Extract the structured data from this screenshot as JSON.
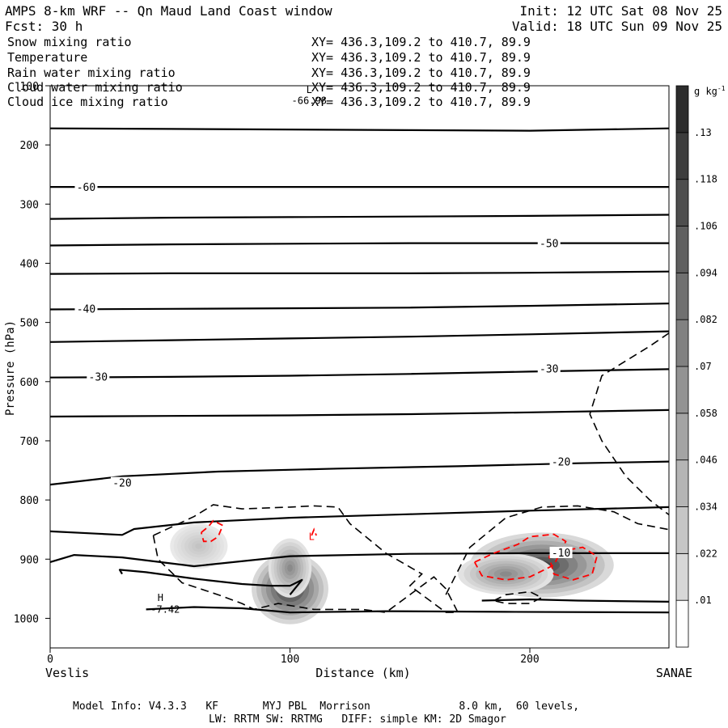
{
  "header": {
    "title": "AMPS 8-km WRF -- Qn Maud Land Coast window",
    "forecast": "Fcst:   30 h",
    "init": "Init: 12 UTC Sat 08 Nov 25",
    "valid": "Valid: 18 UTC Sun 09 Nov 25"
  },
  "fields": [
    {
      "name": "Snow mixing ratio",
      "xy": "XY= 436.3,109.2 to 410.7, 89.9",
      "color": "#000000"
    },
    {
      "name": "Temperature",
      "xy": "XY= 436.3,109.2 to 410.7, 89.9",
      "color": "#000000"
    },
    {
      "name": "Rain water mixing ratio",
      "xy": "XY= 436.3,109.2 to 410.7, 89.9",
      "color": "#ff0000"
    },
    {
      "name": "Cloud water mixing ratio",
      "xy": "XY= 436.3,109.2 to 410.7, 89.9",
      "color": "#0000ff"
    },
    {
      "name": "Cloud ice mixing ratio",
      "xy": "XY= 436.3,109.2 to 410.7, 89.9",
      "color": "#000000"
    }
  ],
  "chart_data": {
    "type": "cross-section",
    "xlabel": "Distance (km)",
    "ylabel": "Pressure (hPa)",
    "xlim": [
      0,
      258
    ],
    "ylim": [
      1050,
      100
    ],
    "x_ticks": [
      0,
      100,
      200
    ],
    "y_ticks": [
      100,
      200,
      300,
      400,
      500,
      600,
      700,
      800,
      900,
      1000
    ],
    "x_end_labels": {
      "left": "Veslis",
      "right": "SANAE"
    },
    "colorbar": {
      "unit": "g kg",
      "unit_sup": "-1",
      "levels": [
        ".01",
        ".022",
        ".034",
        ".046",
        ".058",
        ".07",
        ".082",
        ".094",
        ".106",
        ".118",
        ".13"
      ]
    },
    "temperature_isotherm_labels": [
      {
        "label": "-60",
        "x": 15,
        "p": 272
      },
      {
        "label": "-50",
        "x": 208,
        "p": 367
      },
      {
        "label": "-40",
        "x": 15,
        "p": 478
      },
      {
        "label": "-30",
        "x": 20,
        "p": 593
      },
      {
        "label": "-30",
        "x": 208,
        "p": 579
      },
      {
        "label": "-20",
        "x": 30,
        "p": 772
      },
      {
        "label": "-20",
        "x": 213,
        "p": 736
      },
      {
        "label": "-10",
        "x": 213,
        "p": 890
      }
    ],
    "temperature_isotherms": [
      {
        "x": [
          0,
          50,
          100,
          150,
          200,
          258
        ],
        "p": [
          172,
          173,
          174,
          175,
          176,
          172
        ]
      },
      {
        "x": [
          0,
          50,
          100,
          150,
          200,
          258
        ],
        "p": [
          271,
          271,
          271,
          271,
          271,
          271
        ]
      },
      {
        "x": [
          0,
          50,
          100,
          150,
          200,
          258
        ],
        "p": [
          325,
          323,
          322,
          321,
          320,
          318
        ]
      },
      {
        "x": [
          0,
          50,
          100,
          150,
          200,
          258
        ],
        "p": [
          370,
          368,
          367,
          366,
          366,
          366
        ]
      },
      {
        "x": [
          0,
          50,
          100,
          150,
          200,
          258
        ],
        "p": [
          418,
          417,
          417,
          417,
          416,
          414
        ]
      },
      {
        "x": [
          0,
          50,
          100,
          150,
          200,
          258
        ],
        "p": [
          478,
          477,
          476,
          475,
          472,
          468
        ]
      },
      {
        "x": [
          0,
          50,
          100,
          150,
          200,
          258
        ],
        "p": [
          533,
          530,
          527,
          524,
          520,
          515
        ]
      },
      {
        "x": [
          0,
          50,
          100,
          150,
          200,
          258
        ],
        "p": [
          593,
          592,
          590,
          587,
          583,
          579
        ]
      },
      {
        "x": [
          0,
          50,
          100,
          150,
          200,
          258
        ],
        "p": [
          659,
          658,
          657,
          655,
          652,
          648
        ]
      },
      {
        "x": [
          0,
          30,
          70,
          120,
          170,
          220,
          258
        ],
        "p": [
          774,
          760,
          752,
          747,
          743,
          738,
          735
        ]
      },
      {
        "x": [
          0,
          20,
          30,
          35,
          60,
          100,
          150,
          200,
          258
        ],
        "p": [
          853,
          857,
          859,
          849,
          838,
          830,
          824,
          818,
          812
        ]
      },
      {
        "x": [
          0,
          10,
          30,
          60,
          100,
          150,
          200,
          258
        ],
        "p": [
          905,
          893,
          897,
          912,
          895,
          891,
          890,
          890
        ]
      },
      {
        "x": [
          30,
          29,
          40,
          60,
          80,
          92,
          100,
          105,
          100
        ],
        "p": [
          925,
          918,
          922,
          933,
          942,
          945,
          945,
          935,
          960
        ]
      },
      {
        "x": [
          40,
          60,
          80,
          100,
          140,
          190,
          258
        ],
        "p": [
          985,
          981,
          983,
          990,
          988,
          989,
          990
        ]
      },
      {
        "x": [
          180,
          200,
          220,
          258
        ],
        "p": [
          970,
          968,
          970,
          972
        ]
      }
    ],
    "snow_dashed_contours": [
      {
        "x": [
          43,
          60,
          68,
          80,
          100,
          110,
          120,
          125,
          140,
          155,
          150,
          165,
          170,
          165,
          160,
          150,
          140,
          130,
          110,
          95,
          85,
          80,
          70,
          55,
          45,
          43
        ],
        "p": [
          860,
          828,
          808,
          815,
          812,
          810,
          812,
          840,
          890,
          925,
          945,
          990,
          990,
          950,
          930,
          960,
          990,
          985,
          985,
          975,
          985,
          975,
          960,
          940,
          900,
          860
        ]
      },
      {
        "x": [
          165,
          175,
          190,
          205,
          220,
          235,
          245,
          258
        ],
        "p": [
          960,
          880,
          830,
          812,
          810,
          820,
          840,
          850
        ]
      },
      {
        "x": [
          258,
          250,
          230,
          225,
          230,
          240,
          250,
          258
        ],
        "p": [
          518,
          540,
          590,
          655,
          700,
          760,
          800,
          825
        ]
      },
      {
        "x": [
          185,
          190,
          200,
          205,
          200,
          190,
          185
        ],
        "p": [
          970,
          960,
          955,
          965,
          975,
          975,
          970
        ]
      }
    ],
    "rain_contours": [
      {
        "x": [
          63,
          66,
          68,
          72,
          70,
          67,
          64,
          63
        ],
        "p": [
          855,
          845,
          835,
          843,
          862,
          870,
          870,
          855
        ]
      },
      {
        "x": [
          109,
          110,
          111
        ],
        "p": [
          860,
          850,
          860
        ]
      },
      {
        "x": [
          177,
          185,
          195,
          200,
          205,
          210,
          215,
          210,
          200,
          190,
          180,
          177
        ],
        "p": [
          905,
          890,
          875,
          862,
          860,
          858,
          870,
          910,
          930,
          935,
          928,
          905
        ]
      },
      {
        "x": [
          208,
          215,
          222,
          228,
          226,
          218,
          210,
          208
        ],
        "p": [
          895,
          885,
          880,
          895,
          925,
          935,
          925,
          895
        ]
      }
    ],
    "shading_blobs": [
      {
        "x": 100,
        "p": 950,
        "rx": 16,
        "rp": 60,
        "value": 0.13
      },
      {
        "x": 100,
        "p": 915,
        "rx": 9,
        "rp": 50,
        "value": 0.07
      },
      {
        "x": 62,
        "p": 878,
        "rx": 12,
        "rp": 38,
        "value": 0.03
      },
      {
        "x": 205,
        "p": 910,
        "rx": 30,
        "rp": 55,
        "value": 0.12
      },
      {
        "x": 190,
        "p": 925,
        "rx": 20,
        "rp": 35,
        "value": 0.07
      }
    ],
    "annotations": [
      {
        "text": "H",
        "x": 46,
        "p": 965
      },
      {
        "text": "-7.42",
        "x": 48,
        "p": 985
      },
      {
        "text": "L",
        "x": 108,
        "p": 107
      },
      {
        "text": "-66.98",
        "x": 108,
        "p": 125
      },
      {
        "text": "L",
        "x": 109,
        "p": 862,
        "color": "#ff0000"
      }
    ]
  },
  "footer": {
    "line1": "Model Info: V4.3.3   KF       MYJ PBL  Morrison              8.0 km,  60 levels,",
    "line2": "LW: RRTM SW: RRTMG   DIFF: simple KM: 2D Smagor"
  }
}
